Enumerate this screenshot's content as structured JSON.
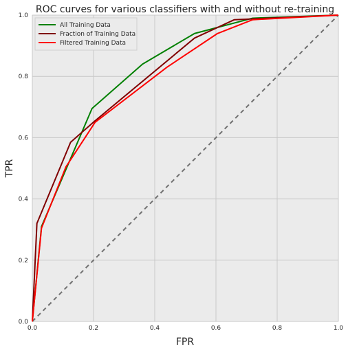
{
  "chart_data": {
    "type": "line",
    "title": "ROC curves for various classifiers with and without re-training",
    "xlabel": "FPR",
    "ylabel": "TPR",
    "xlim": [
      0,
      1
    ],
    "ylim": [
      0,
      1
    ],
    "xticks": [
      "0.0",
      "0.2",
      "0.4",
      "0.6",
      "0.8",
      "1.0"
    ],
    "yticks": [
      "0.0",
      "0.2",
      "0.4",
      "0.6",
      "0.8",
      "1.0"
    ],
    "grid": true,
    "legend_position": "top-left",
    "colors": {
      "background": "#ebebeb",
      "grid": "#c8c8c8",
      "diagonal": "#707070"
    },
    "series": [
      {
        "name": "All Training Data",
        "color": "#008000",
        "x": [
          0.0,
          0.03,
          0.195,
          0.36,
          0.53,
          0.72,
          1.0
        ],
        "y": [
          0.0,
          0.31,
          0.695,
          0.84,
          0.94,
          0.99,
          1.0
        ]
      },
      {
        "name": "Fraction of Training Data",
        "color": "#800000",
        "x": [
          0.0,
          0.015,
          0.125,
          0.205,
          0.53,
          0.66,
          1.0
        ],
        "y": [
          0.0,
          0.32,
          0.585,
          0.655,
          0.925,
          0.985,
          1.0
        ]
      },
      {
        "name": "Filtered Training Data",
        "color": "#ff0000",
        "x": [
          0.0,
          0.03,
          0.11,
          0.205,
          0.44,
          0.605,
          0.72,
          1.0
        ],
        "y": [
          0.0,
          0.305,
          0.505,
          0.65,
          0.83,
          0.94,
          0.985,
          1.0
        ]
      }
    ],
    "diagonal": {
      "x": [
        0,
        1
      ],
      "y": [
        0,
        1
      ]
    }
  }
}
